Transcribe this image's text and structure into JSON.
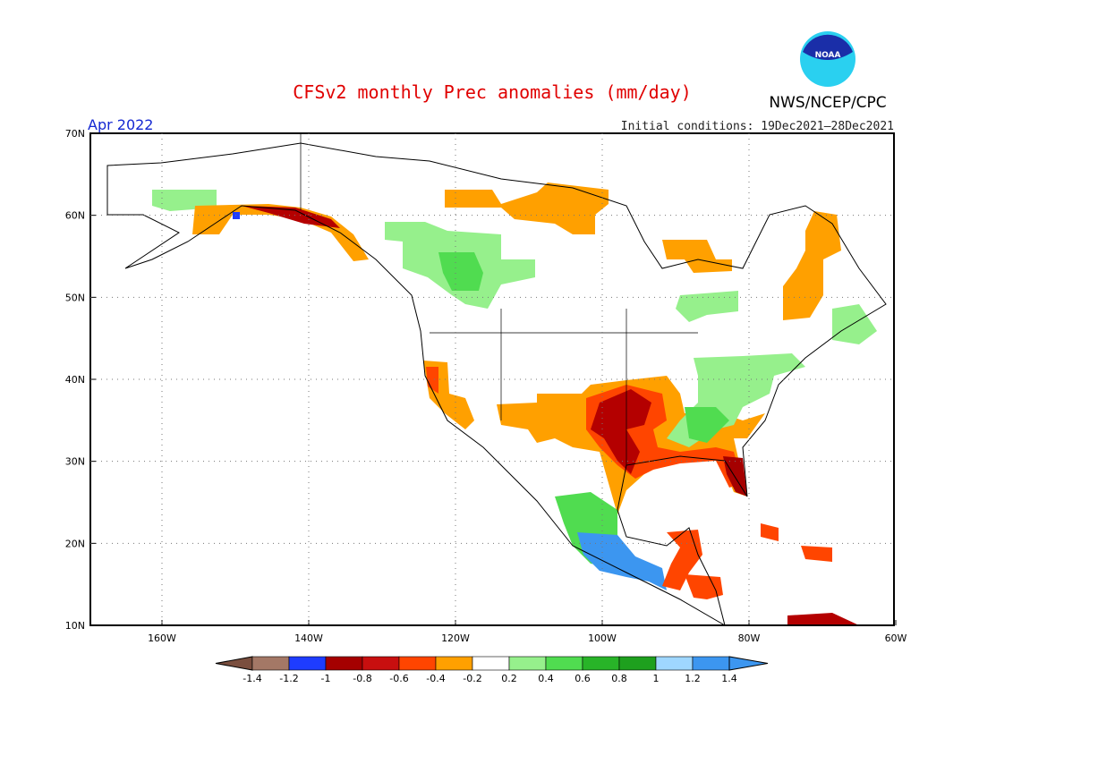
{
  "map": {
    "title": "CFSv2 monthly Prec anomalies (mm/day)",
    "subtitle": "Apr 2022",
    "initial_conditions": "Initial conditions: 19Dec2021–28Dec2021",
    "agency": "NWS/NCEP/CPC",
    "logo_text": "NOAA",
    "lat_ticks": [
      {
        "value": 70,
        "label": "70N"
      },
      {
        "value": 60,
        "label": "60N"
      },
      {
        "value": 50,
        "label": "50N"
      },
      {
        "value": 40,
        "label": "40N"
      },
      {
        "value": 30,
        "label": "30N"
      },
      {
        "value": 20,
        "label": "20N"
      },
      {
        "value": 10,
        "label": "10N"
      }
    ],
    "lon_ticks": [
      {
        "value": -160,
        "label": "160W"
      },
      {
        "value": -140,
        "label": "140W"
      },
      {
        "value": -120,
        "label": "120W"
      },
      {
        "value": -100,
        "label": "100W"
      },
      {
        "value": -80,
        "label": "80W"
      },
      {
        "value": -60,
        "label": "60W"
      }
    ],
    "colorbar": {
      "labels": [
        -1.4,
        -1.2,
        -1,
        -0.8,
        -0.6,
        -0.4,
        -0.2,
        0.2,
        0.4,
        0.6,
        0.8,
        1,
        1.2,
        1.4
      ],
      "colors": [
        "#7a4e3e",
        "#a47866",
        "#1e3cff",
        "#a50000",
        "#c80f0f",
        "#ff4500",
        "#ffa000",
        "#ffffff",
        "#96f08c",
        "#50dc50",
        "#28b428",
        "#1ea01e",
        "#9fd7ff",
        "#3c96f0",
        "#3c96f0"
      ]
    }
  }
}
